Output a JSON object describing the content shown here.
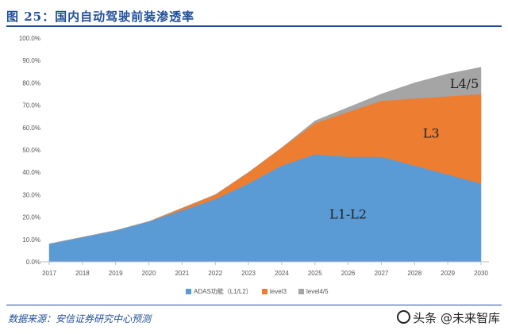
{
  "figure": {
    "title": "图 25：国内自动驾驶前装渗透率",
    "source": "数据来源：安信证券研究中心预测",
    "watermark": "头条 @未来智库"
  },
  "chart_data": {
    "type": "area",
    "stacked": true,
    "x": [
      "2017",
      "2018",
      "2019",
      "2020",
      "2021",
      "2022",
      "2023",
      "2024",
      "2025",
      "2026",
      "2027",
      "2028",
      "2029",
      "2030"
    ],
    "series": [
      {
        "name": "ADAS功能（L1/L2）",
        "color": "#5b9bd5",
        "values": [
          8,
          11,
          14,
          18,
          23,
          28,
          35,
          43,
          48,
          47,
          47,
          43,
          39,
          35
        ]
      },
      {
        "name": "level3",
        "color": "#ed7d31",
        "values": [
          0,
          0,
          0,
          0,
          1,
          2,
          5,
          8,
          14,
          20,
          25,
          30,
          35,
          40
        ]
      },
      {
        "name": "level4/5",
        "color": "#a5a5a5",
        "values": [
          0,
          0,
          0,
          0,
          0,
          0,
          0,
          0,
          1,
          2,
          3,
          7,
          10,
          12
        ]
      }
    ],
    "area_labels": [
      "L1-L2",
      "L3",
      "L4/5"
    ],
    "ylim": [
      0,
      100
    ],
    "yticks": [
      "0.0%",
      "10.0%",
      "20.0%",
      "30.0%",
      "40.0%",
      "50.0%",
      "60.0%",
      "70.0%",
      "80.0%",
      "90.0%",
      "100.0%"
    ],
    "legend_position": "bottom",
    "grid": false
  }
}
